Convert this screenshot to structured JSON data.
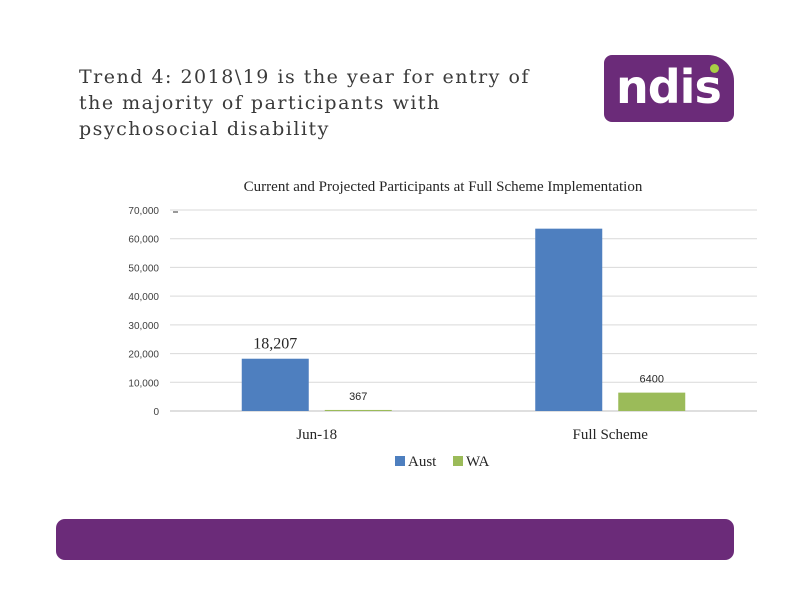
{
  "slide": {
    "title": "Trend 4: 2018\\19 is the  year for entry of the majority of participants with psychosocial disability"
  },
  "logo": {
    "text": "ndis"
  },
  "chart_data": {
    "type": "bar",
    "title": "Current and Projected Participants at Full Scheme Implementation",
    "categories": [
      "Jun-18",
      "Full Scheme"
    ],
    "series": [
      {
        "name": "Aust",
        "color": "#4e7fbf",
        "values": [
          18207,
          63500
        ]
      },
      {
        "name": "WA",
        "color": "#9bbb59",
        "values": [
          367,
          6400
        ]
      }
    ],
    "data_labels": [
      {
        "series": "Aust",
        "category": "Jun-18",
        "text": "18,207"
      },
      {
        "series": "WA",
        "category": "Jun-18",
        "text": "367"
      },
      {
        "series": "WA",
        "category": "Full Scheme",
        "text": "6400"
      }
    ],
    "y_ticks": [
      0,
      10000,
      20000,
      30000,
      40000,
      50000,
      60000,
      70000
    ],
    "y_tick_labels": [
      "0",
      "10,000",
      "20,000",
      "30,000",
      "40,000",
      "50,000",
      "60,000",
      "70,000"
    ],
    "ylim": [
      0,
      70000
    ],
    "xlabel": "",
    "ylabel": "",
    "grid": true,
    "legend_position": "bottom"
  },
  "colors": {
    "brand_purple": "#6b2b79",
    "brand_green": "#a8cf45"
  }
}
